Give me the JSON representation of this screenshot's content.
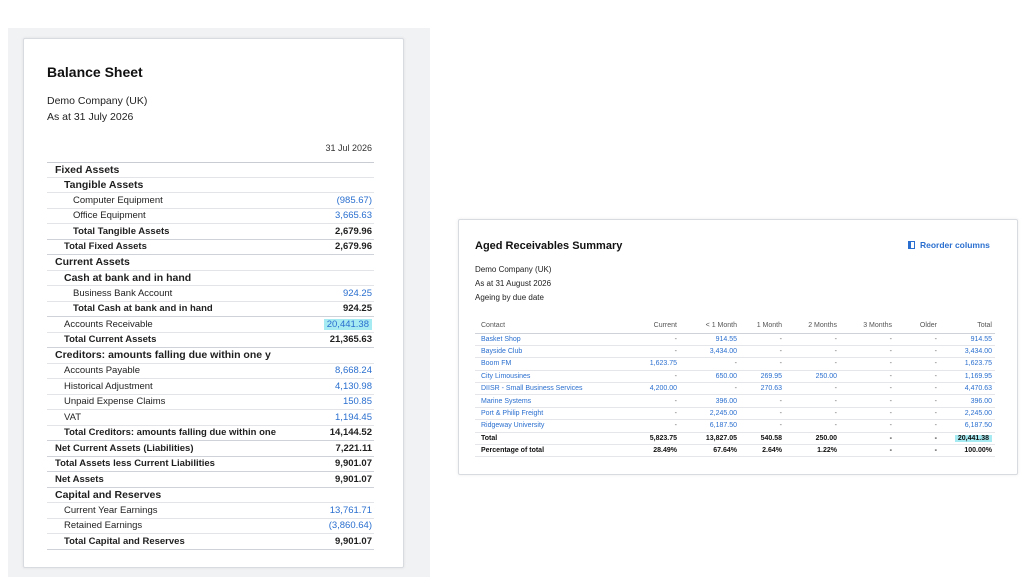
{
  "balance_sheet": {
    "title": "Balance Sheet",
    "company": "Demo Company (UK)",
    "date_line": "As at 31 July 2026",
    "column_date": "31 Jul 2026",
    "rows": [
      {
        "label": "Fixed Assets",
        "value": "",
        "kind": "head",
        "indent": 8
      },
      {
        "label": "Tangible Assets",
        "value": "",
        "kind": "head",
        "indent": 17
      },
      {
        "label": "Computer Equipment",
        "value": "(985.67)",
        "kind": "link",
        "indent": 26
      },
      {
        "label": "Office Equipment",
        "value": "3,665.63",
        "kind": "link",
        "indent": 26
      },
      {
        "label": "Total Tangible Assets",
        "value": "2,679.96",
        "kind": "total",
        "indent": 26
      },
      {
        "label": "Total Fixed Assets",
        "value": "2,679.96",
        "kind": "total",
        "indent": 17
      },
      {
        "label": "Current Assets",
        "value": "",
        "kind": "head",
        "indent": 8
      },
      {
        "label": "Cash at bank and in hand",
        "value": "",
        "kind": "head",
        "indent": 17
      },
      {
        "label": "Business Bank Account",
        "value": "924.25",
        "kind": "link",
        "indent": 26
      },
      {
        "label": "Total Cash at bank and in hand",
        "value": "924.25",
        "kind": "total",
        "indent": 26
      },
      {
        "label": "Accounts Receivable",
        "value": "20,441.38",
        "kind": "link-hl",
        "indent": 17
      },
      {
        "label": "Total Current Assets",
        "value": "21,365.63",
        "kind": "total",
        "indent": 17
      },
      {
        "label": "Creditors: amounts falling due within one y",
        "value": "",
        "kind": "head",
        "indent": 8
      },
      {
        "label": "Accounts Payable",
        "value": "8,668.24",
        "kind": "link",
        "indent": 17
      },
      {
        "label": "Historical Adjustment",
        "value": "4,130.98",
        "kind": "link",
        "indent": 17
      },
      {
        "label": "Unpaid Expense Claims",
        "value": "150.85",
        "kind": "link",
        "indent": 17
      },
      {
        "label": "VAT",
        "value": "1,194.45",
        "kind": "link",
        "indent": 17
      },
      {
        "label": "Total Creditors: amounts falling due within one",
        "value": "14,144.52",
        "kind": "total",
        "indent": 17
      },
      {
        "label": "Net Current Assets (Liabilities)",
        "value": "7,221.11",
        "kind": "total",
        "indent": 8
      },
      {
        "label": "Total Assets less Current Liabilities",
        "value": "9,901.07",
        "kind": "total",
        "indent": 8
      },
      {
        "label": "Net Assets",
        "value": "9,901.07",
        "kind": "total",
        "indent": 8
      },
      {
        "label": "Capital and Reserves",
        "value": "",
        "kind": "head",
        "indent": 8
      },
      {
        "label": "Current Year Earnings",
        "value": "13,761.71",
        "kind": "link",
        "indent": 17
      },
      {
        "label": "Retained Earnings",
        "value": "(3,860.64)",
        "kind": "link",
        "indent": 17
      },
      {
        "label": "Total Capital and Reserves",
        "value": "9,901.07",
        "kind": "total",
        "indent": 17
      }
    ]
  },
  "aged_receivables": {
    "title": "Aged Receivables Summary",
    "reorder_label": "Reorder columns",
    "company": "Demo Company (UK)",
    "date_line": "As at 31 August 2026",
    "ageing_line": "Ageing by due date",
    "columns": [
      "Contact",
      "Current",
      "< 1 Month",
      "1 Month",
      "2 Months",
      "3 Months",
      "Older",
      "Total"
    ],
    "rows": [
      [
        "Basket Shop",
        "-",
        "914.55",
        "-",
        "-",
        "-",
        "-",
        "914.55"
      ],
      [
        "Bayside Club",
        "-",
        "3,434.00",
        "-",
        "-",
        "-",
        "-",
        "3,434.00"
      ],
      [
        "Boom FM",
        "1,623.75",
        "-",
        "-",
        "-",
        "-",
        "-",
        "1,623.75"
      ],
      [
        "City Limousines",
        "-",
        "650.00",
        "269.95",
        "250.00",
        "-",
        "-",
        "1,169.95"
      ],
      [
        "DIISR - Small Business Services",
        "4,200.00",
        "-",
        "270.63",
        "-",
        "-",
        "-",
        "4,470.63"
      ],
      [
        "Marine Systems",
        "-",
        "396.00",
        "-",
        "-",
        "-",
        "-",
        "396.00"
      ],
      [
        "Port & Philip Freight",
        "-",
        "2,245.00",
        "-",
        "-",
        "-",
        "-",
        "2,245.00"
      ],
      [
        "Ridgeway University",
        "-",
        "6,187.50",
        "-",
        "-",
        "-",
        "-",
        "6,187.50"
      ]
    ],
    "total_row": [
      "Total",
      "5,823.75",
      "13,827.05",
      "540.58",
      "250.00",
      "-",
      "-",
      "20,441.38"
    ],
    "percent_row": [
      "Percentage of total",
      "28.49%",
      "67.64%",
      "2.64%",
      "1.22%",
      "-",
      "-",
      "100.00%"
    ]
  },
  "colors": {
    "link": "#2a6fcf",
    "highlight": "#a7ebf2"
  },
  "icons": {
    "reorder": "column-panel-icon"
  }
}
